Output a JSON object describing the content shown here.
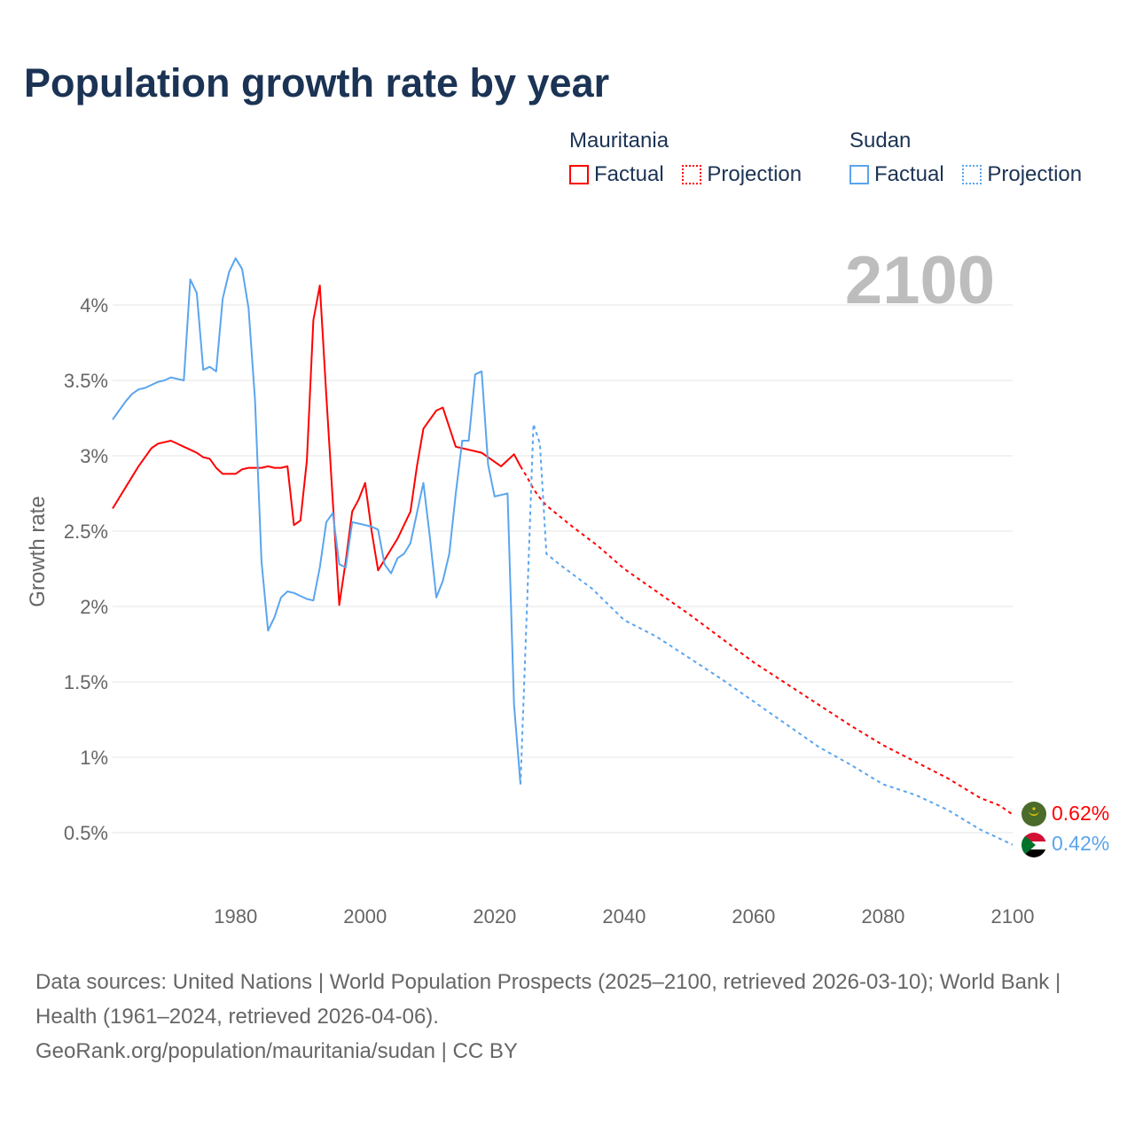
{
  "title": "Population growth rate by year",
  "legend": [
    {
      "country": "Mauritania",
      "color": "#ff0000",
      "factual": "Factual",
      "projection": "Projection"
    },
    {
      "country": "Sudan",
      "color": "#5aa5ee",
      "factual": "Factual",
      "projection": "Projection"
    }
  ],
  "year_label": "2100",
  "end_labels": {
    "mauritania": "0.62%",
    "sudan": "0.42%"
  },
  "footer": {
    "sources": "Data sources: United Nations | World Population Prospects (2025–2100, retrieved 2026-03-10); World Bank | Health (1961–2024, retrieved 2026-04-06).",
    "credit": "GeoRank.org/population/mauritania/sudan | CC BY"
  },
  "chart_data": {
    "type": "line",
    "title": "Population growth rate by year",
    "xlabel": "",
    "ylabel": "Growth rate",
    "xlim": [
      1961,
      2100
    ],
    "ylim": [
      0.3,
      4.4
    ],
    "xticks": [
      1980,
      2000,
      2020,
      2040,
      2060,
      2080,
      2100
    ],
    "xtick_labels": [
      "1980",
      "2000",
      "2020",
      "2040",
      "2060",
      "2080",
      "2100"
    ],
    "yticks": [
      0.5,
      1,
      1.5,
      2,
      2.5,
      3,
      3.5,
      4
    ],
    "ytick_labels": [
      "0.5%",
      "1%",
      "1.5%",
      "2%",
      "2.5%",
      "3%",
      "3.5%",
      "4%"
    ],
    "grid": true,
    "legend_position": "top-right",
    "series": [
      {
        "name": "Mauritania Factual",
        "color": "#ff0000",
        "style": "solid",
        "start_year": 1961,
        "values": [
          2.65,
          2.72,
          2.79,
          2.86,
          2.93,
          2.99,
          3.05,
          3.08,
          3.09,
          3.1,
          3.08,
          3.06,
          3.04,
          3.02,
          2.99,
          2.98,
          2.92,
          2.88,
          2.88,
          2.88,
          2.91,
          2.92,
          2.92,
          2.92,
          2.93,
          2.92,
          2.92,
          2.93,
          2.54,
          2.57,
          2.97,
          3.9,
          4.13,
          3.4,
          2.7,
          2.01,
          2.3,
          2.63,
          2.71,
          2.82,
          2.5,
          2.24,
          2.31,
          2.38,
          2.45,
          2.54,
          2.63,
          2.93,
          3.18,
          3.24,
          3.3,
          3.32,
          3.19,
          3.06,
          3.05,
          3.04,
          3.03,
          3.02,
          2.99,
          2.96,
          2.93,
          2.97,
          3.01,
          2.93
        ]
      },
      {
        "name": "Mauritania Projection",
        "color": "#ff0000",
        "style": "dotted",
        "points": [
          [
            2024,
            2.93
          ],
          [
            2025,
            2.86
          ],
          [
            2026,
            2.78
          ],
          [
            2027,
            2.72
          ],
          [
            2028,
            2.67
          ],
          [
            2032,
            2.53
          ],
          [
            2036,
            2.4
          ],
          [
            2040,
            2.25
          ],
          [
            2045,
            2.1
          ],
          [
            2050,
            1.95
          ],
          [
            2055,
            1.79
          ],
          [
            2060,
            1.63
          ],
          [
            2065,
            1.49
          ],
          [
            2070,
            1.35
          ],
          [
            2075,
            1.21
          ],
          [
            2080,
            1.08
          ],
          [
            2085,
            0.97
          ],
          [
            2090,
            0.86
          ],
          [
            2095,
            0.73
          ],
          [
            2098,
            0.68
          ],
          [
            2100,
            0.62
          ]
        ]
      },
      {
        "name": "Sudan Factual",
        "color": "#5aa5ee",
        "style": "solid",
        "start_year": 1961,
        "values": [
          3.24,
          3.3,
          3.36,
          3.41,
          3.44,
          3.45,
          3.47,
          3.49,
          3.5,
          3.52,
          3.51,
          3.5,
          4.17,
          4.08,
          3.57,
          3.59,
          3.56,
          4.04,
          4.22,
          4.31,
          4.24,
          3.98,
          3.37,
          2.3,
          1.84,
          1.93,
          2.06,
          2.1,
          2.09,
          2.07,
          2.05,
          2.04,
          2.26,
          2.56,
          2.62,
          2.28,
          2.26,
          2.56,
          2.55,
          2.54,
          2.53,
          2.51,
          2.28,
          2.22,
          2.32,
          2.35,
          2.42,
          2.62,
          2.82,
          2.46,
          2.06,
          2.17,
          2.35,
          2.75,
          3.1,
          3.1,
          3.54,
          3.56,
          2.94,
          2.73,
          2.74,
          2.75,
          1.35,
          0.82
        ]
      },
      {
        "name": "Sudan Projection",
        "color": "#5aa5ee",
        "style": "dotted",
        "points": [
          [
            2024,
            0.82
          ],
          [
            2025,
            2.0
          ],
          [
            2026,
            3.21
          ],
          [
            2027,
            3.08
          ],
          [
            2028,
            2.35
          ],
          [
            2030,
            2.28
          ],
          [
            2035,
            2.12
          ],
          [
            2040,
            1.91
          ],
          [
            2045,
            1.8
          ],
          [
            2050,
            1.66
          ],
          [
            2055,
            1.52
          ],
          [
            2060,
            1.37
          ],
          [
            2065,
            1.22
          ],
          [
            2070,
            1.07
          ],
          [
            2075,
            0.95
          ],
          [
            2080,
            0.82
          ],
          [
            2085,
            0.75
          ],
          [
            2090,
            0.65
          ],
          [
            2095,
            0.52
          ],
          [
            2100,
            0.42
          ]
        ]
      }
    ]
  }
}
